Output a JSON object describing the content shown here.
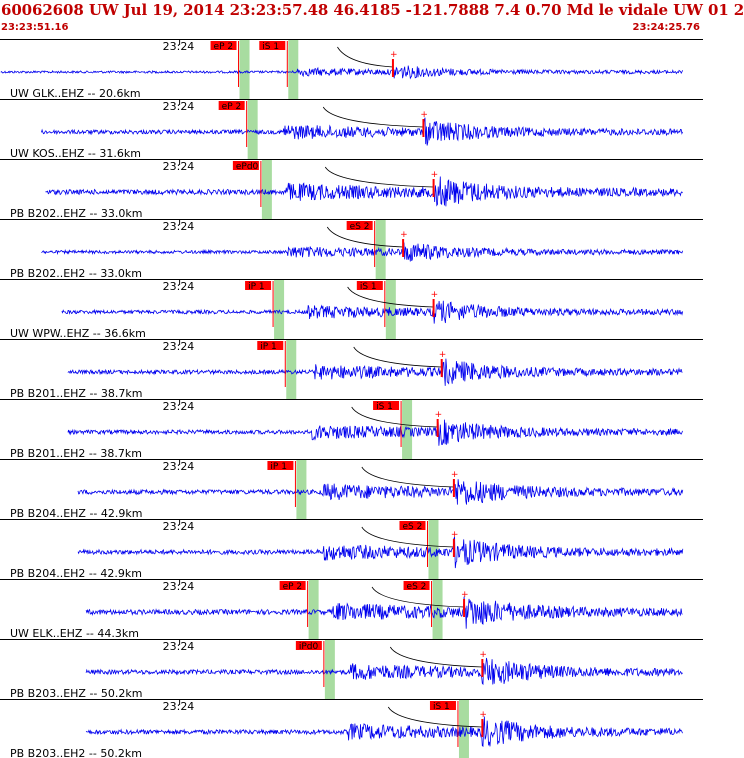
{
  "header": {
    "title": "60062608 UW Jul 19, 2014 23:23:57.48   46.4185 -121.7888  7.4 0.70 Md le vidale UW 01   2",
    "start_time": "23:23:51.16",
    "end_time": "23:24:25.76"
  },
  "colors": {
    "header_text": "#c00000",
    "trace": "#0000ee",
    "pick_box": "#ff0000",
    "pick_band": "#a8dca0",
    "separator": "#000000",
    "curve": "#000000"
  },
  "chart_data": {
    "type": "line",
    "x_unit": "time",
    "xlim": [
      "23:23:51.16",
      "23:24:25.76"
    ],
    "minute_tick_label": "23:24",
    "traces": [
      {
        "label": "UW GLK..EHZ -- 20.6km",
        "data_start": "23:23:51.2",
        "data_end": "23:24:25.6",
        "amplitude": 0.25,
        "p_pick": "eP 2",
        "p_time": "23:24:02.9",
        "s_pick": "iS 1",
        "s_time": "23:24:05.3",
        "onset": "23:24:05.8",
        "s_arrival": "23:24:10.5"
      },
      {
        "label": "UW KOS..EHZ -- 31.6km",
        "data_start": "23:23:53.2",
        "data_end": "23:24:27.0",
        "amplitude": 0.45,
        "p_pick": "eP 2",
        "p_time": "23:24:03.3",
        "s_pick": "",
        "s_time": "",
        "onset": "23:24:05.1",
        "s_arrival": "23:24:12.0"
      },
      {
        "label": "PB B202..EHZ -- 33.0km",
        "data_start": "23:23:53.4",
        "data_end": "23:24:27.8",
        "amplitude": 0.55,
        "p_pick": "ePd0",
        "p_time": "23:24:04.0",
        "s_pick": "",
        "s_time": "",
        "onset": "23:24:05.2",
        "s_arrival": "23:24:12.5"
      },
      {
        "label": "PB B202..EH2 -- 33.0km",
        "data_start": "23:23:53.2",
        "data_end": "23:24:27.8",
        "amplitude": 0.35,
        "p_pick": "",
        "p_time": "",
        "s_pick": "eS 2",
        "s_time": "23:24:09.6",
        "onset": "23:24:05.3",
        "s_arrival": "23:24:11.0"
      },
      {
        "label": "UW WPW..EHZ -- 36.6km",
        "data_start": "23:23:54.2",
        "data_end": "23:24:28.0",
        "amplitude": 0.4,
        "p_pick": "iP 1",
        "p_time": "23:24:04.6",
        "s_pick": "iS 1",
        "s_time": "23:24:10.1",
        "onset": "23:24:06.3",
        "s_arrival": "23:24:12.5"
      },
      {
        "label": "PB B201..EHZ -- 38.7km",
        "data_start": "23:23:54.5",
        "data_end": "23:24:28.4",
        "amplitude": 0.45,
        "p_pick": "iP 1",
        "p_time": "23:24:05.2",
        "s_pick": "",
        "s_time": "",
        "onset": "23:24:06.6",
        "s_arrival": "23:24:12.9"
      },
      {
        "label": "PB B201..EH2 -- 38.7km",
        "data_start": "23:23:54.5",
        "data_end": "23:24:28.4",
        "amplitude": 0.45,
        "p_pick": "",
        "p_time": "",
        "s_pick": "iS 1",
        "s_time": "23:24:10.9",
        "onset": "23:24:06.5",
        "s_arrival": "23:24:12.7"
      },
      {
        "label": "PB B204..EHZ -- 42.9km",
        "data_start": "23:23:55.0",
        "data_end": "23:24:29.0",
        "amplitude": 0.5,
        "p_pick": "iP 1",
        "p_time": "23:24:05.7",
        "s_pick": "",
        "s_time": "",
        "onset": "23:24:07.0",
        "s_arrival": "23:24:13.5"
      },
      {
        "label": "PB B204..EH2 -- 42.9km",
        "data_start": "23:23:55.0",
        "data_end": "23:24:29.0",
        "amplitude": 0.5,
        "p_pick": "",
        "p_time": "",
        "s_pick": "eS 2",
        "s_time": "23:24:12.2",
        "onset": "23:24:07.0",
        "s_arrival": "23:24:13.5"
      },
      {
        "label": "UW ELK..EHZ -- 44.3km",
        "data_start": "23:23:55.4",
        "data_end": "23:24:29.0",
        "amplitude": 0.55,
        "p_pick": "eP 2",
        "p_time": "23:24:06.3",
        "s_pick": "eS 2",
        "s_time": "23:24:12.4",
        "onset": "23:24:07.5",
        "s_arrival": "23:24:14.0"
      },
      {
        "label": "PB B203..EHZ -- 50.2km",
        "data_start": "23:23:55.4",
        "data_end": "23:24:29.0",
        "amplitude": 0.5,
        "p_pick": "iPd0",
        "p_time": "23:24:07.1",
        "s_pick": "",
        "s_time": "",
        "onset": "23:24:08.4",
        "s_arrival": "23:24:14.9"
      },
      {
        "label": "PB B203..EH2 -- 50.2km",
        "data_start": "23:23:55.4",
        "data_end": "23:24:29.0",
        "amplitude": 0.5,
        "p_pick": "",
        "p_time": "",
        "s_pick": "iS 1",
        "s_time": "23:24:13.7",
        "onset": "23:24:08.3",
        "s_arrival": "23:24:14.9"
      }
    ],
    "title": "",
    "xlabel": "",
    "ylabel": "",
    "grid": false
  }
}
